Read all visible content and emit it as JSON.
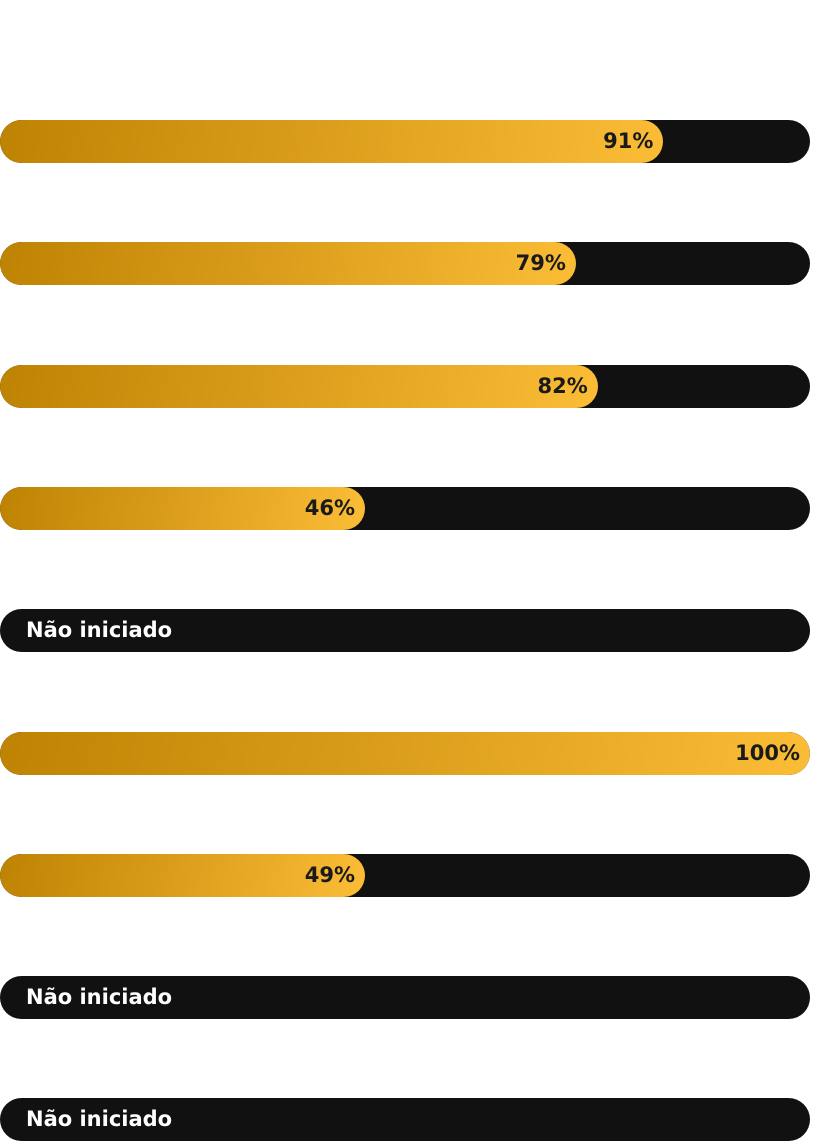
{
  "progress_bars": [
    {
      "percent": 91,
      "label": "91%"
    },
    {
      "percent": 79,
      "label": "79%"
    },
    {
      "percent": 82,
      "label": "82%"
    },
    {
      "percent": 46,
      "label": "46%"
    },
    {
      "percent": 0,
      "label": "Não iniciado"
    },
    {
      "percent": 100,
      "label": "100%"
    },
    {
      "percent": 49,
      "label": "49%"
    },
    {
      "percent": 0,
      "label": "Não iniciado"
    },
    {
      "percent": 0,
      "label": "Não iniciado"
    }
  ],
  "colors": {
    "track": "#111111",
    "fill_start": "#bf8303",
    "fill_end": "#fbbd36"
  }
}
